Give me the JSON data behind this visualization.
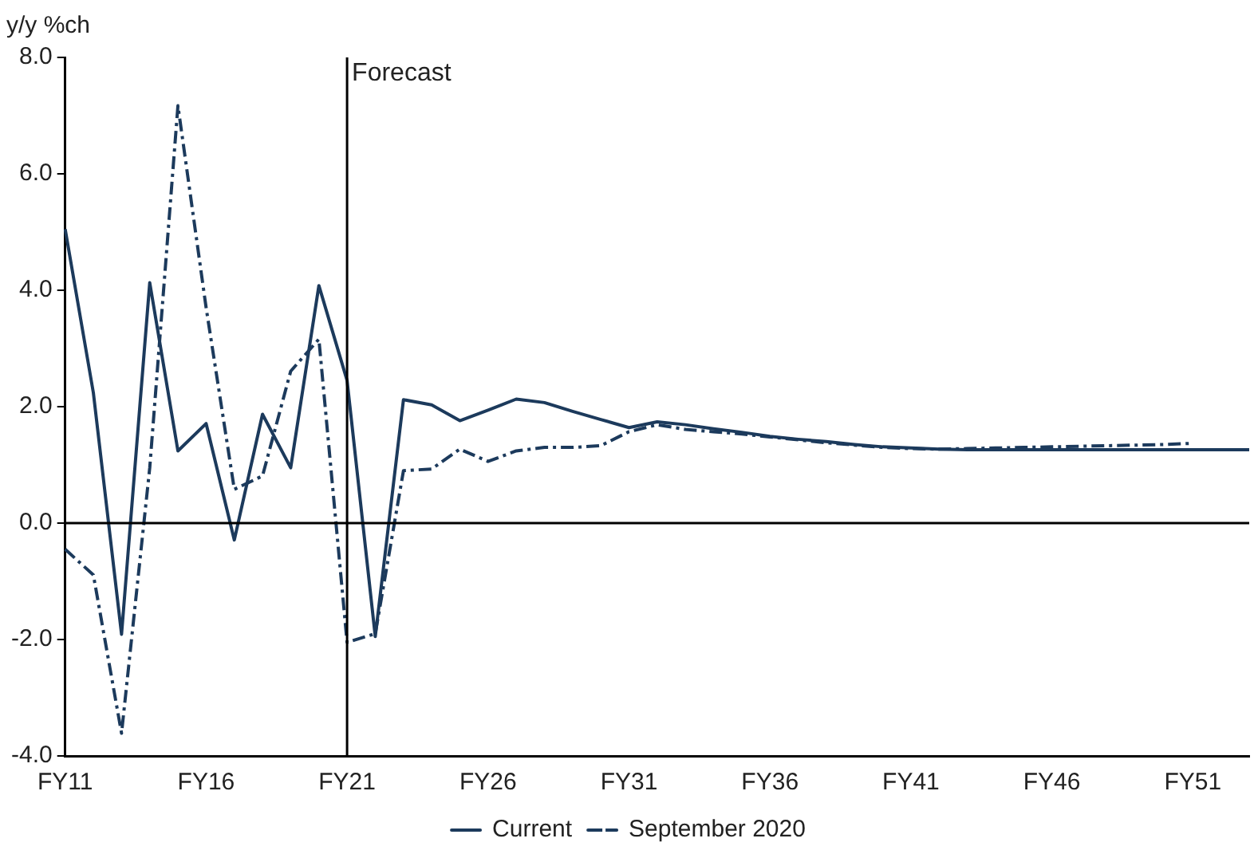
{
  "chart_data": {
    "type": "line",
    "ylabel": "y/y %ch",
    "categories": [
      "FY11",
      null,
      null,
      null,
      null,
      "FY16",
      null,
      null,
      null,
      null,
      "FY21",
      null,
      null,
      null,
      null,
      "FY26",
      null,
      null,
      null,
      null,
      "FY31",
      null,
      null,
      null,
      null,
      "FY36",
      null,
      null,
      null,
      null,
      "FY41",
      null,
      null,
      null,
      null,
      "FY46",
      null,
      null,
      null,
      null,
      "FY51",
      null,
      null
    ],
    "series": [
      {
        "name": "Current",
        "color": "#1c3a5c",
        "line_style": "solid",
        "values": [
          5.05,
          2.24,
          -1.91,
          4.13,
          1.24,
          1.71,
          -0.29,
          1.87,
          0.95,
          4.08,
          2.45,
          -1.95,
          2.12,
          2.03,
          1.76,
          1.94,
          2.13,
          2.07,
          1.92,
          1.78,
          1.64,
          1.74,
          1.69,
          1.62,
          1.56,
          1.49,
          1.44,
          1.4,
          1.35,
          1.31,
          1.29,
          1.27,
          1.26,
          1.26,
          1.26,
          1.26,
          1.26,
          1.26,
          1.26,
          1.26,
          1.26,
          1.26,
          1.26
        ]
      },
      {
        "name": "September 2020",
        "color": "#1c3a5c",
        "line_style": "dashed",
        "values": [
          -0.45,
          -0.89,
          -3.61,
          0.95,
          7.17,
          3.7,
          0.58,
          0.81,
          2.61,
          3.16,
          -2.05,
          -1.9,
          0.9,
          0.93,
          1.27,
          1.06,
          1.24,
          1.3,
          1.3,
          1.33,
          1.57,
          1.69,
          1.61,
          1.57,
          1.53,
          1.48,
          1.43,
          1.38,
          1.34,
          1.3,
          1.28,
          1.27,
          1.28,
          1.29,
          1.3,
          1.31,
          1.32,
          1.33,
          1.34,
          1.35,
          1.37,
          null,
          null
        ]
      }
    ],
    "ylim": [
      -4,
      8
    ],
    "yticks": [
      {
        "value": -4,
        "label": "-4.0"
      },
      {
        "value": -2,
        "label": "-2.0"
      },
      {
        "value": 0,
        "label": "0.0"
      },
      {
        "value": 2,
        "label": "2.0"
      },
      {
        "value": 4,
        "label": "4.0"
      },
      {
        "value": 6,
        "label": "6.0"
      },
      {
        "value": 8,
        "label": "8.0"
      }
    ],
    "ref_lines": [
      {
        "axis": "x",
        "value": "FY21",
        "label": "Forecast",
        "color": "#000000"
      },
      {
        "axis": "y",
        "value": 0,
        "color": "#000000"
      }
    ],
    "grid": false,
    "legend": "bottom",
    "marker": "none"
  }
}
